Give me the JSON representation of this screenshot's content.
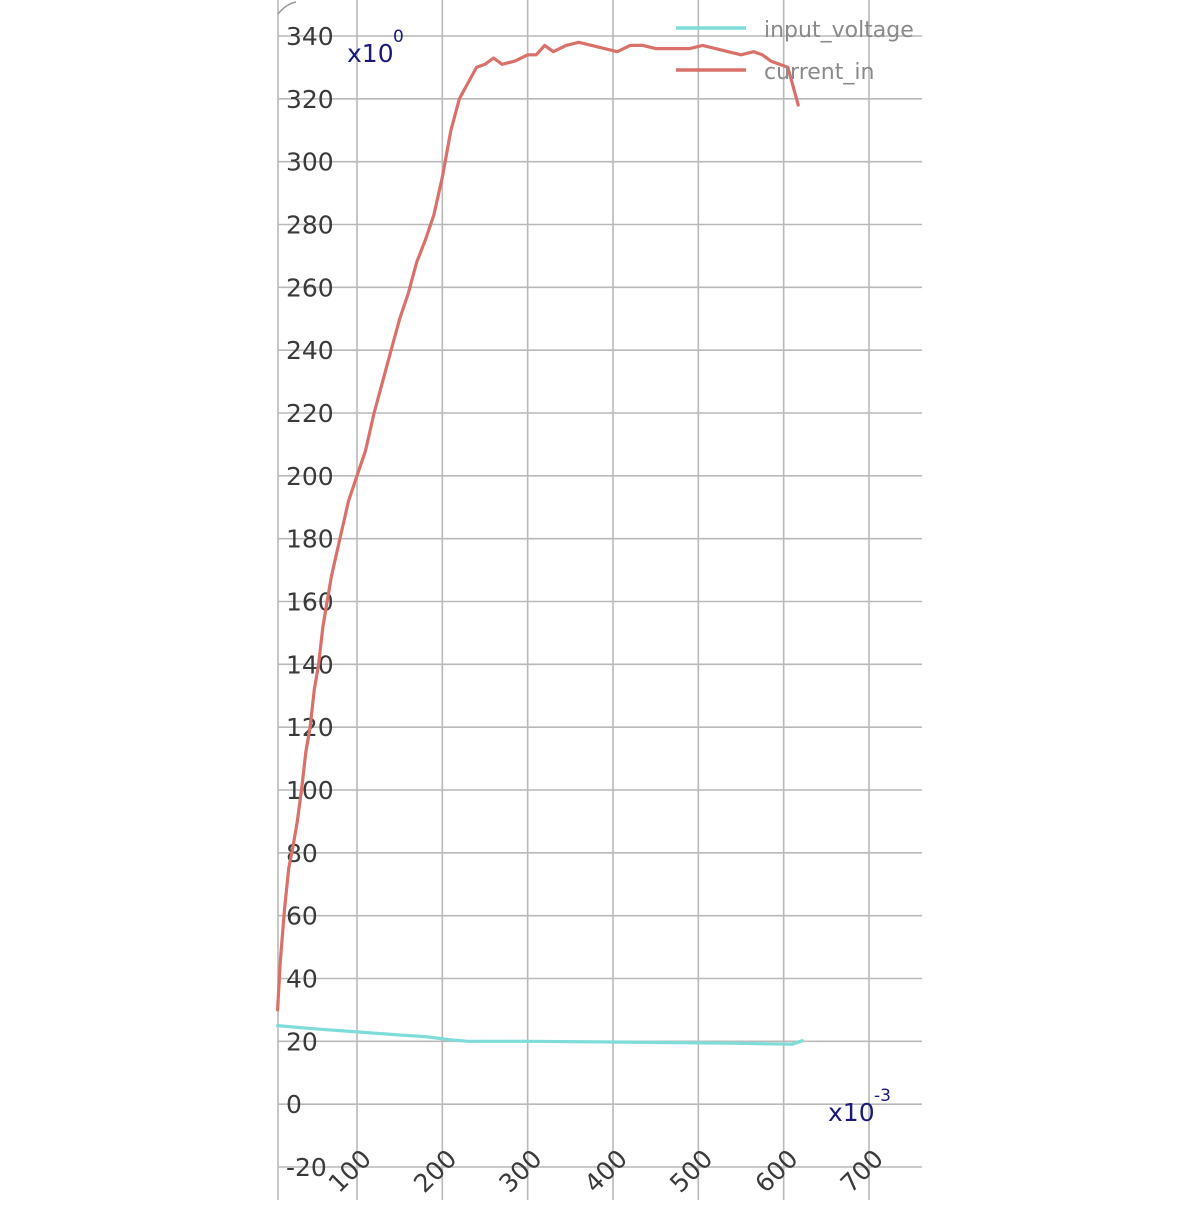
{
  "chart_data": {
    "type": "line",
    "title": "",
    "xlabel": "",
    "ylabel": "",
    "x_exponent": {
      "base": "x10",
      "power": "-3"
    },
    "y_exponent": {
      "base": "x10",
      "power": "0"
    },
    "xlim": [
      10,
      770
    ],
    "ylim": [
      -20,
      340
    ],
    "x_ticks": [
      100,
      200,
      300,
      400,
      500,
      600,
      700
    ],
    "x_tick_labels": [
      "100",
      "200",
      "300",
      "400",
      "500",
      "600",
      "700"
    ],
    "y_ticks": [
      -20,
      0,
      20,
      40,
      60,
      80,
      100,
      120,
      140,
      160,
      180,
      200,
      220,
      240,
      260,
      280,
      300,
      320,
      340
    ],
    "y_tick_labels": [
      "-20",
      "0",
      "20",
      "40",
      "60",
      "80",
      "100",
      "120",
      "140",
      "160",
      "180",
      "200",
      "220",
      "240",
      "260",
      "280",
      "300",
      "320",
      "340"
    ],
    "grid": true,
    "legend_position": "top-right",
    "series": [
      {
        "name": "input_voltage",
        "color": "#7fdcd8",
        "points": [
          [
            7,
            25
          ],
          [
            50,
            24
          ],
          [
            100,
            23
          ],
          [
            150,
            22
          ],
          [
            180,
            21.5
          ],
          [
            210,
            20.5
          ],
          [
            230,
            20
          ],
          [
            300,
            20
          ],
          [
            400,
            19.8
          ],
          [
            500,
            19.5
          ],
          [
            540,
            19.4
          ],
          [
            580,
            19.2
          ],
          [
            610,
            19.1
          ],
          [
            622,
            20.2
          ]
        ]
      },
      {
        "name": "current_in",
        "color": "#d9706a",
        "points": [
          [
            7,
            30
          ],
          [
            10,
            45
          ],
          [
            15,
            62
          ],
          [
            20,
            75
          ],
          [
            25,
            82
          ],
          [
            30,
            90
          ],
          [
            35,
            100
          ],
          [
            40,
            112
          ],
          [
            45,
            120
          ],
          [
            50,
            132
          ],
          [
            55,
            140
          ],
          [
            60,
            152
          ],
          [
            70,
            168
          ],
          [
            80,
            180
          ],
          [
            90,
            192
          ],
          [
            100,
            200
          ],
          [
            110,
            208
          ],
          [
            120,
            220
          ],
          [
            130,
            230
          ],
          [
            140,
            240
          ],
          [
            150,
            250
          ],
          [
            160,
            258
          ],
          [
            170,
            268
          ],
          [
            180,
            275
          ],
          [
            190,
            283
          ],
          [
            200,
            295
          ],
          [
            210,
            310
          ],
          [
            220,
            320
          ],
          [
            230,
            325
          ],
          [
            240,
            330
          ],
          [
            250,
            331
          ],
          [
            260,
            333
          ],
          [
            270,
            331
          ],
          [
            285,
            332
          ],
          [
            300,
            334
          ],
          [
            310,
            334
          ],
          [
            320,
            337
          ],
          [
            330,
            335
          ],
          [
            345,
            337
          ],
          [
            360,
            338
          ],
          [
            375,
            337
          ],
          [
            390,
            336
          ],
          [
            405,
            335
          ],
          [
            420,
            337
          ],
          [
            435,
            337
          ],
          [
            450,
            336
          ],
          [
            470,
            336
          ],
          [
            490,
            336
          ],
          [
            505,
            337
          ],
          [
            520,
            336
          ],
          [
            535,
            335
          ],
          [
            550,
            334
          ],
          [
            565,
            335
          ],
          [
            575,
            334
          ],
          [
            585,
            332
          ],
          [
            595,
            331
          ],
          [
            605,
            330
          ],
          [
            610,
            325
          ],
          [
            617,
            318
          ]
        ]
      }
    ]
  }
}
